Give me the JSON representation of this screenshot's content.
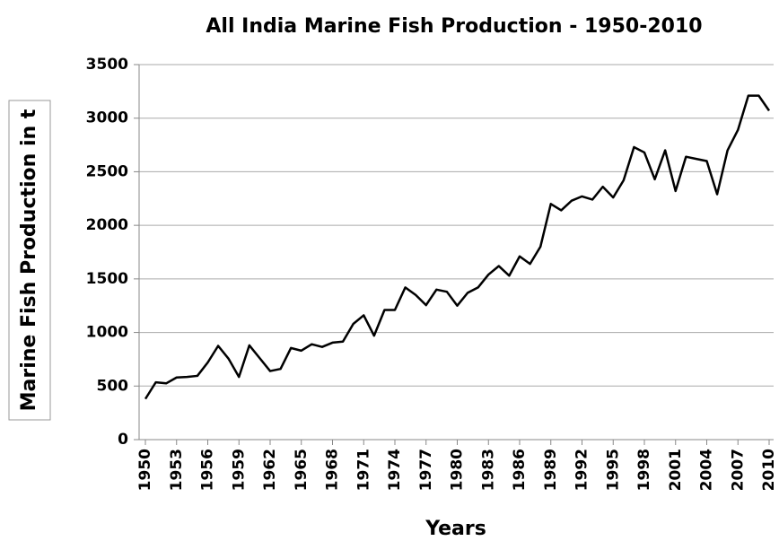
{
  "chart_data": {
    "type": "line",
    "title": "All India Marine Fish Production - 1950-2010",
    "x_label": "Years",
    "y_label": "Marine Fish Production in t",
    "x": [
      1950,
      1951,
      1952,
      1953,
      1954,
      1955,
      1956,
      1957,
      1958,
      1959,
      1960,
      1961,
      1962,
      1963,
      1964,
      1965,
      1966,
      1967,
      1968,
      1969,
      1970,
      1971,
      1972,
      1973,
      1974,
      1975,
      1976,
      1977,
      1978,
      1979,
      1980,
      1981,
      1982,
      1983,
      1984,
      1985,
      1986,
      1987,
      1988,
      1989,
      1990,
      1991,
      1992,
      1993,
      1994,
      1995,
      1996,
      1997,
      1998,
      1999,
      2000,
      2001,
      2002,
      2003,
      2004,
      2005,
      2006,
      2007,
      2008,
      2009,
      2010
    ],
    "series": [
      {
        "name": "Marine Fish Production",
        "color": "#000000",
        "values": [
          380,
          535,
          525,
          580,
          585,
          595,
          720,
          875,
          755,
          585,
          880,
          760,
          640,
          660,
          855,
          830,
          890,
          865,
          905,
          915,
          1080,
          1160,
          970,
          1210,
          1210,
          1420,
          1350,
          1255,
          1400,
          1380,
          1250,
          1370,
          1420,
          1540,
          1620,
          1530,
          1710,
          1640,
          1800,
          2200,
          2140,
          2230,
          2270,
          2240,
          2360,
          2260,
          2420,
          2730,
          2680,
          2430,
          2700,
          2320,
          2640,
          2620,
          2600,
          2290,
          2700,
          2890,
          3210,
          3210,
          3070
        ]
      }
    ],
    "xlim": [
      1950,
      2010
    ],
    "xticks": [
      1950,
      1953,
      1956,
      1959,
      1962,
      1965,
      1968,
      1971,
      1974,
      1977,
      1980,
      1983,
      1986,
      1989,
      1992,
      1995,
      1998,
      2001,
      2004,
      2007,
      2010
    ],
    "ylim": [
      0,
      3500
    ],
    "yticks": [
      0,
      500,
      1000,
      1500,
      2000,
      2500,
      3000,
      3500
    ],
    "grid": true
  }
}
